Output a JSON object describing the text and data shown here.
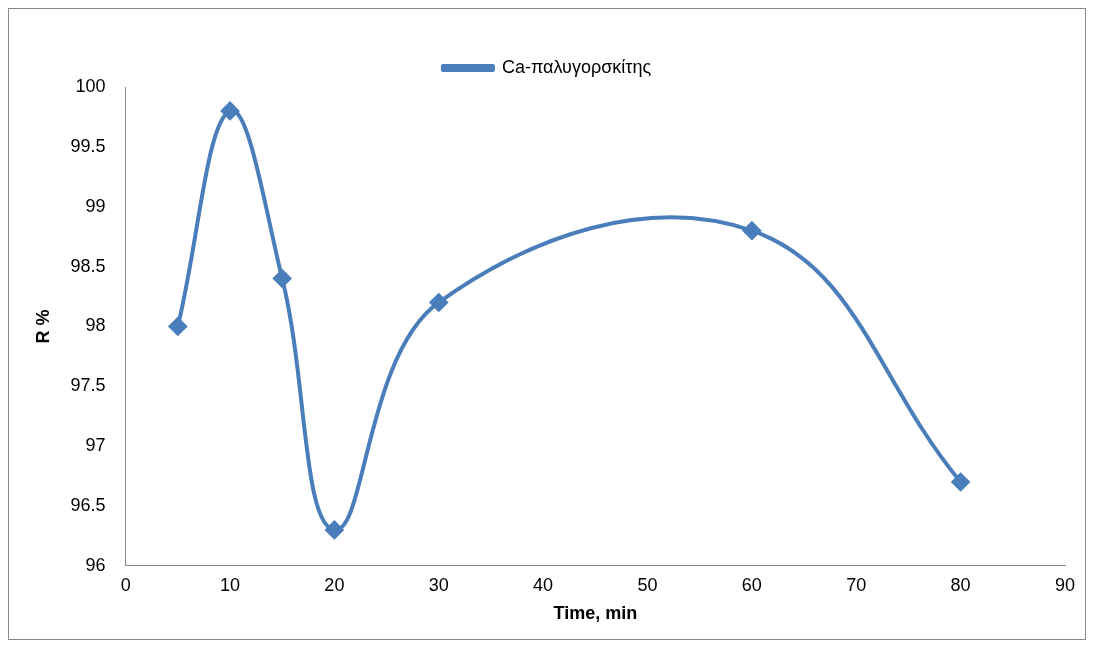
{
  "chart_data": {
    "type": "line",
    "xlabel": "Time, min",
    "ylabel": "R %",
    "x": [
      5,
      10,
      15,
      20,
      30,
      60,
      80
    ],
    "series": [
      {
        "name": "Ca-παλυγορσκίτης",
        "color": "#4a7ebb",
        "values": [
          98,
          99.8,
          98.4,
          96.3,
          98.2,
          98.8,
          96.7
        ]
      }
    ],
    "xlim": [
      0,
      90
    ],
    "xticks": [
      0,
      10,
      20,
      30,
      40,
      50,
      60,
      70,
      80,
      90
    ],
    "ylim": [
      96,
      100
    ],
    "yticks": [
      96,
      96.5,
      97,
      97.5,
      98,
      98.5,
      99,
      99.5,
      100
    ],
    "grid": false,
    "legend": "top",
    "marker": "diamond",
    "line_style": "solid"
  }
}
